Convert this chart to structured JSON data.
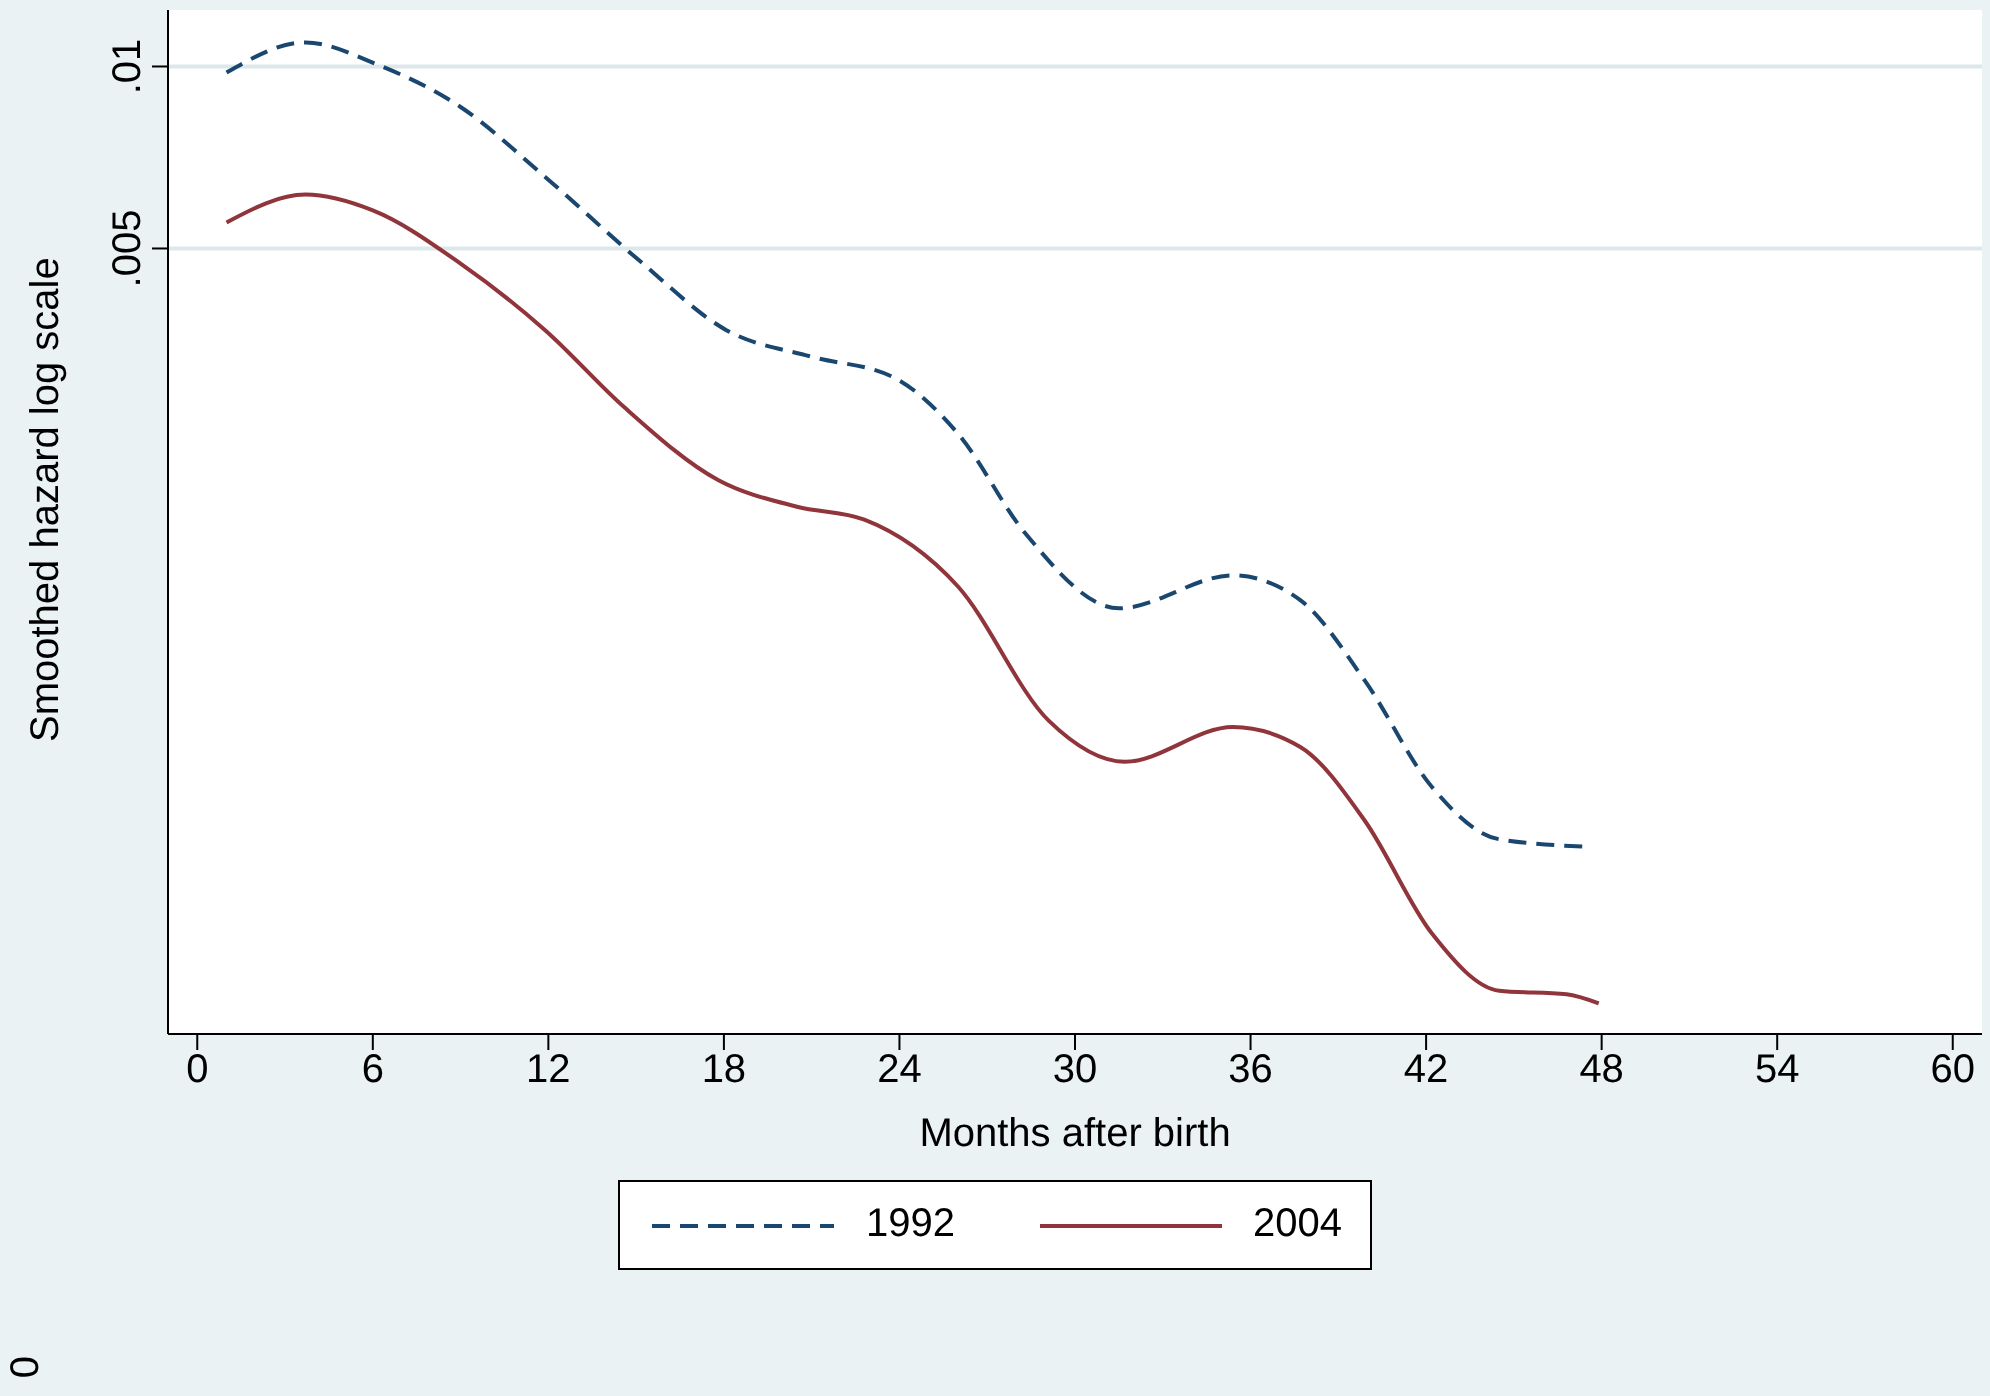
{
  "chart_data": {
    "type": "line",
    "xlabel": "Months after birth",
    "ylabel": "Smoothed hazard log scale",
    "log": "y",
    "xlim": [
      -1,
      61
    ],
    "xticks": [
      0,
      6,
      12,
      18,
      24,
      30,
      36,
      42,
      48,
      54,
      60
    ],
    "ylim": [
      0.000251,
      0.0124
    ],
    "yticks": [
      {
        "value": 0.005,
        "label": ".005"
      },
      {
        "value": 0.01,
        "label": ".01"
      }
    ],
    "grid": "y",
    "legend": "bottom",
    "marker": "none",
    "annotations": [
      "0"
    ],
    "series": [
      {
        "name": "1992",
        "color": "#1a476f",
        "line_style": "dashed",
        "x": [
          1,
          3.7,
          6.2,
          9,
          11.9,
          15.1,
          18.1,
          21,
          23.8,
          26,
          28.3,
          31.5,
          35.4,
          37.7,
          39.9,
          42.2,
          44.5,
          47.6
        ],
        "values": [
          0.00977,
          0.01096,
          0.01005,
          0.00857,
          0.00656,
          0.00478,
          0.00366,
          0.00331,
          0.00306,
          0.00247,
          0.00169,
          0.00127,
          0.00144,
          0.00131,
          0.000965,
          0.000643,
          0.000527,
          0.000512
        ]
      },
      {
        "name": "2004",
        "color": "#90353b",
        "line_style": "solid",
        "x": [
          1,
          3.7,
          6,
          9,
          11.9,
          14.6,
          17.8,
          20.5,
          22.8,
          26,
          29.1,
          31.7,
          35.4,
          37.7,
          39.9,
          42.2,
          44.5,
          46.8,
          47.9
        ],
        "values": [
          0.00552,
          0.00614,
          0.00578,
          0.00472,
          0.00366,
          0.00273,
          0.00207,
          0.00187,
          0.00178,
          0.00138,
          0.000828,
          0.000708,
          0.000808,
          0.000749,
          0.000566,
          0.000368,
          0.000296,
          0.000292,
          0.000282
        ]
      }
    ]
  }
}
